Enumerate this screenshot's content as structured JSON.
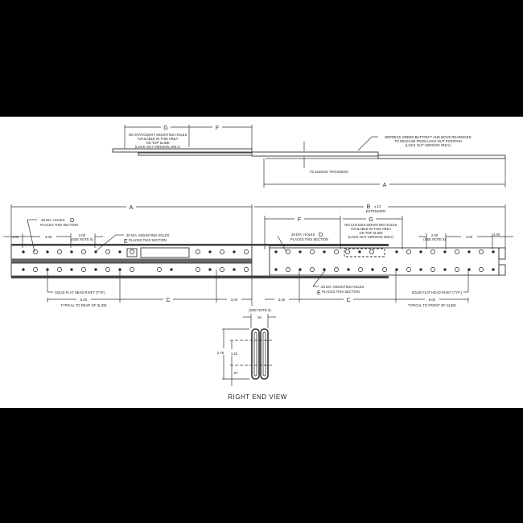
{
  "top_view": {
    "dim_g": "G",
    "dim_f": "F",
    "dim_a": "A",
    "note_no_stationary": [
      "NO STATIONARY MOUNTING HOLES",
      "AVAILABLE IN THIS AREA",
      "ON TOP SLIDE",
      "(LOCK OUT VERSION ONLY)"
    ],
    "note_depress": [
      "DEPRESS GREEN BUTTON™ AND MOVE REARWARD",
      "TO RELEASE FROM LOCK-OUT POSITION",
      "(LOCK OUT VERSION ONLY)"
    ],
    "sliding_thickness": ".76 SLIDING THICKNESS"
  },
  "side_view": {
    "dim_a": "A",
    "dim_b": "B",
    "dim_b_tol": "±.13",
    "dim_b_sub": "EXTENSION",
    "left": {
      "dim_100": "1.00",
      "dim_400": "4.00",
      "dim_200": "2.00",
      "see_note": "(SEE NOTE 6)",
      "holes_d": ".38 DIA. HOLES",
      "holes_d_letter": "D",
      "holes_d_sub": "PLACES THIS SECTION",
      "mount_e": ".30 DIA. MOUNTING HOLES",
      "mount_e_letter": "E",
      "mount_e_sub": "PLACES THIS SECTION",
      "rivet": "SOLID FLAT HEAD RIVET (TYP.)",
      "dim_600": "6.00",
      "typical": "TYPICAL TO REAR OF SLIDE",
      "dim_c": "C",
      "dim_300": "3.00"
    },
    "right": {
      "dim_f": "F",
      "dim_g": "G",
      "no_chassis": [
        "NO CHASSIS MOUNTING HOLES",
        "AVAILABLE IN THIS AREA",
        "ON TOP SLIDE",
        "(LOCK OUT VERSION ONLY)"
      ],
      "holes_d": ".38 DIA. HOLES",
      "holes_d_letter": "D",
      "holes_d_sub": "PLACES THIS SECTION",
      "dim_200": "2.00",
      "see_note": "(SEE NOTE 6)",
      "dim_400": "4.00",
      "dim_100": "1.00",
      "mount_e": ".30 DIA. MOUNTING HOLES",
      "mount_e_letter": "E",
      "mount_e_sub": "PLACES THIS SECTION",
      "rivet": "SOLID FLAT HEAD RIVET (TYP.)",
      "dim_300": "3.00",
      "dim_c": "C",
      "dim_600": "6.00",
      "typical": "TYPICAL TO FRONT OF SLIDE"
    }
  },
  "end_view": {
    "see_note": "(SEE NOTE 6)",
    "dim_094": ".94",
    "dim_278": "2.78",
    "dim_142": "1.42",
    "dim_067": ".67",
    "title": "RIGHT END VIEW"
  }
}
